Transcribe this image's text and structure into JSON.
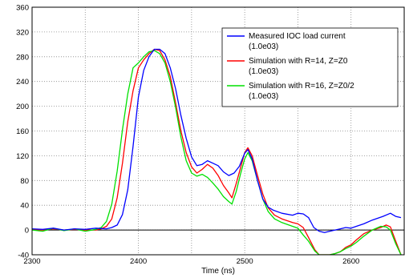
{
  "chart_data": {
    "type": "line",
    "xlabel": "Time (ns)",
    "ylabel": "",
    "xlim": [
      2300,
      2650
    ],
    "ylim": [
      -40,
      360
    ],
    "xticks": [
      2300,
      2400,
      2500,
      2600
    ],
    "yticks": [
      -40,
      0,
      40,
      80,
      120,
      160,
      200,
      240,
      280,
      320,
      360
    ],
    "grid": true,
    "legend_position": "top-right",
    "series": [
      {
        "name": "Measured IOC load current",
        "scale": "(1.0e03)",
        "color": "#0000ff",
        "points": [
          [
            2300,
            2
          ],
          [
            2310,
            1
          ],
          [
            2320,
            3
          ],
          [
            2330,
            0
          ],
          [
            2340,
            2
          ],
          [
            2350,
            1
          ],
          [
            2360,
            3
          ],
          [
            2370,
            2
          ],
          [
            2375,
            4
          ],
          [
            2380,
            8
          ],
          [
            2385,
            25
          ],
          [
            2390,
            65
          ],
          [
            2395,
            135
          ],
          [
            2400,
            215
          ],
          [
            2405,
            258
          ],
          [
            2410,
            280
          ],
          [
            2415,
            292
          ],
          [
            2420,
            292
          ],
          [
            2425,
            285
          ],
          [
            2430,
            262
          ],
          [
            2435,
            228
          ],
          [
            2440,
            185
          ],
          [
            2445,
            148
          ],
          [
            2450,
            118
          ],
          [
            2455,
            104
          ],
          [
            2460,
            106
          ],
          [
            2465,
            112
          ],
          [
            2470,
            108
          ],
          [
            2475,
            104
          ],
          [
            2480,
            94
          ],
          [
            2485,
            88
          ],
          [
            2490,
            92
          ],
          [
            2495,
            103
          ],
          [
            2500,
            124
          ],
          [
            2503,
            130
          ],
          [
            2507,
            115
          ],
          [
            2512,
            80
          ],
          [
            2517,
            50
          ],
          [
            2522,
            37
          ],
          [
            2527,
            32
          ],
          [
            2535,
            27
          ],
          [
            2545,
            24
          ],
          [
            2550,
            27
          ],
          [
            2555,
            26
          ],
          [
            2560,
            20
          ],
          [
            2565,
            4
          ],
          [
            2570,
            -2
          ],
          [
            2575,
            -4
          ],
          [
            2580,
            -2
          ],
          [
            2590,
            2
          ],
          [
            2595,
            4
          ],
          [
            2600,
            3
          ],
          [
            2605,
            6
          ],
          [
            2612,
            10
          ],
          [
            2620,
            16
          ],
          [
            2630,
            22
          ],
          [
            2637,
            27
          ],
          [
            2642,
            22
          ],
          [
            2647,
            20
          ]
        ]
      },
      {
        "name": "Simulation with R=14, Z=Z0",
        "scale": "(1.0e03)",
        "color": "#ff0000",
        "points": [
          [
            2300,
            1
          ],
          [
            2310,
            0
          ],
          [
            2320,
            2
          ],
          [
            2330,
            0
          ],
          [
            2340,
            1
          ],
          [
            2350,
            0
          ],
          [
            2360,
            0
          ],
          [
            2365,
            2
          ],
          [
            2370,
            6
          ],
          [
            2375,
            18
          ],
          [
            2380,
            52
          ],
          [
            2385,
            108
          ],
          [
            2390,
            175
          ],
          [
            2395,
            225
          ],
          [
            2400,
            262
          ],
          [
            2405,
            275
          ],
          [
            2410,
            285
          ],
          [
            2415,
            292
          ],
          [
            2420,
            290
          ],
          [
            2425,
            275
          ],
          [
            2430,
            248
          ],
          [
            2435,
            205
          ],
          [
            2440,
            160
          ],
          [
            2445,
            125
          ],
          [
            2450,
            102
          ],
          [
            2455,
            92
          ],
          [
            2460,
            98
          ],
          [
            2465,
            106
          ],
          [
            2470,
            100
          ],
          [
            2475,
            88
          ],
          [
            2480,
            72
          ],
          [
            2485,
            60
          ],
          [
            2488,
            52
          ],
          [
            2492,
            75
          ],
          [
            2496,
            100
          ],
          [
            2500,
            125
          ],
          [
            2503,
            133
          ],
          [
            2507,
            120
          ],
          [
            2512,
            88
          ],
          [
            2517,
            58
          ],
          [
            2522,
            36
          ],
          [
            2528,
            24
          ],
          [
            2535,
            18
          ],
          [
            2545,
            12
          ],
          [
            2550,
            10
          ],
          [
            2555,
            4
          ],
          [
            2560,
            -12
          ],
          [
            2566,
            -32
          ],
          [
            2570,
            -40
          ],
          [
            2580,
            -40
          ],
          [
            2585,
            -38
          ],
          [
            2590,
            -35
          ],
          [
            2595,
            -28
          ],
          [
            2600,
            -24
          ],
          [
            2605,
            -16
          ],
          [
            2612,
            -6
          ],
          [
            2620,
            0
          ],
          [
            2628,
            4
          ],
          [
            2633,
            8
          ],
          [
            2637,
            5
          ],
          [
            2642,
            -18
          ],
          [
            2647,
            -40
          ]
        ]
      },
      {
        "name": "Simulation with R=16, Z=Z0/2",
        "scale": "(1.0e03)",
        "color": "#00e000",
        "points": [
          [
            2300,
            0
          ],
          [
            2310,
            -2
          ],
          [
            2320,
            3
          ],
          [
            2330,
            -1
          ],
          [
            2340,
            2
          ],
          [
            2350,
            -2
          ],
          [
            2360,
            1
          ],
          [
            2365,
            4
          ],
          [
            2370,
            14
          ],
          [
            2375,
            42
          ],
          [
            2380,
            95
          ],
          [
            2385,
            162
          ],
          [
            2390,
            220
          ],
          [
            2395,
            262
          ],
          [
            2400,
            270
          ],
          [
            2405,
            280
          ],
          [
            2410,
            288
          ],
          [
            2415,
            290
          ],
          [
            2420,
            285
          ],
          [
            2425,
            270
          ],
          [
            2430,
            240
          ],
          [
            2435,
            198
          ],
          [
            2440,
            150
          ],
          [
            2445,
            112
          ],
          [
            2450,
            92
          ],
          [
            2455,
            87
          ],
          [
            2460,
            90
          ],
          [
            2465,
            85
          ],
          [
            2470,
            76
          ],
          [
            2475,
            66
          ],
          [
            2480,
            54
          ],
          [
            2485,
            46
          ],
          [
            2488,
            42
          ],
          [
            2492,
            62
          ],
          [
            2496,
            90
          ],
          [
            2500,
            115
          ],
          [
            2503,
            125
          ],
          [
            2507,
            112
          ],
          [
            2512,
            80
          ],
          [
            2517,
            50
          ],
          [
            2522,
            30
          ],
          [
            2528,
            18
          ],
          [
            2535,
            12
          ],
          [
            2545,
            6
          ],
          [
            2550,
            3
          ],
          [
            2555,
            -8
          ],
          [
            2560,
            -18
          ],
          [
            2566,
            -34
          ],
          [
            2570,
            -40
          ],
          [
            2580,
            -40
          ],
          [
            2585,
            -38
          ],
          [
            2590,
            -35
          ],
          [
            2595,
            -30
          ],
          [
            2600,
            -26
          ],
          [
            2605,
            -20
          ],
          [
            2612,
            -10
          ],
          [
            2620,
            0
          ],
          [
            2628,
            6
          ],
          [
            2633,
            5
          ],
          [
            2637,
            0
          ],
          [
            2642,
            -22
          ],
          [
            2647,
            -40
          ]
        ]
      }
    ]
  }
}
